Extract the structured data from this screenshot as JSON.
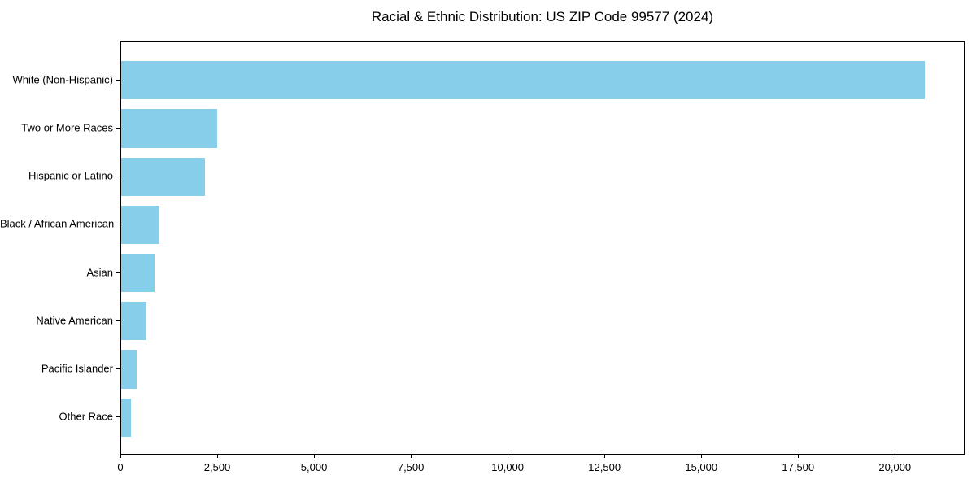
{
  "chart_data": {
    "type": "bar",
    "orientation": "horizontal",
    "title": "Racial & Ethnic Distribution: US ZIP Code 99577 (2024)",
    "categories": [
      "White (Non-Hispanic)",
      "Two or More Races",
      "Hispanic or Latino",
      "Black / African American",
      "Asian",
      "Native American",
      "Pacific Islander",
      "Other Race"
    ],
    "values": [
      20750,
      2480,
      2160,
      990,
      860,
      650,
      400,
      250
    ],
    "xlabel": "",
    "ylabel": "",
    "xlim": [
      0,
      21800
    ],
    "xticks": [
      0,
      2500,
      5000,
      7500,
      10000,
      12500,
      15000,
      17500,
      20000
    ],
    "xtick_labels": [
      "0",
      "2,500",
      "5,000",
      "7,500",
      "10,000",
      "12,500",
      "15,000",
      "17,500",
      "20,000"
    ],
    "grid": false,
    "legend": null,
    "bar_color": "#87CEEB",
    "axis_color": "#000000",
    "background_color": "#ffffff"
  }
}
